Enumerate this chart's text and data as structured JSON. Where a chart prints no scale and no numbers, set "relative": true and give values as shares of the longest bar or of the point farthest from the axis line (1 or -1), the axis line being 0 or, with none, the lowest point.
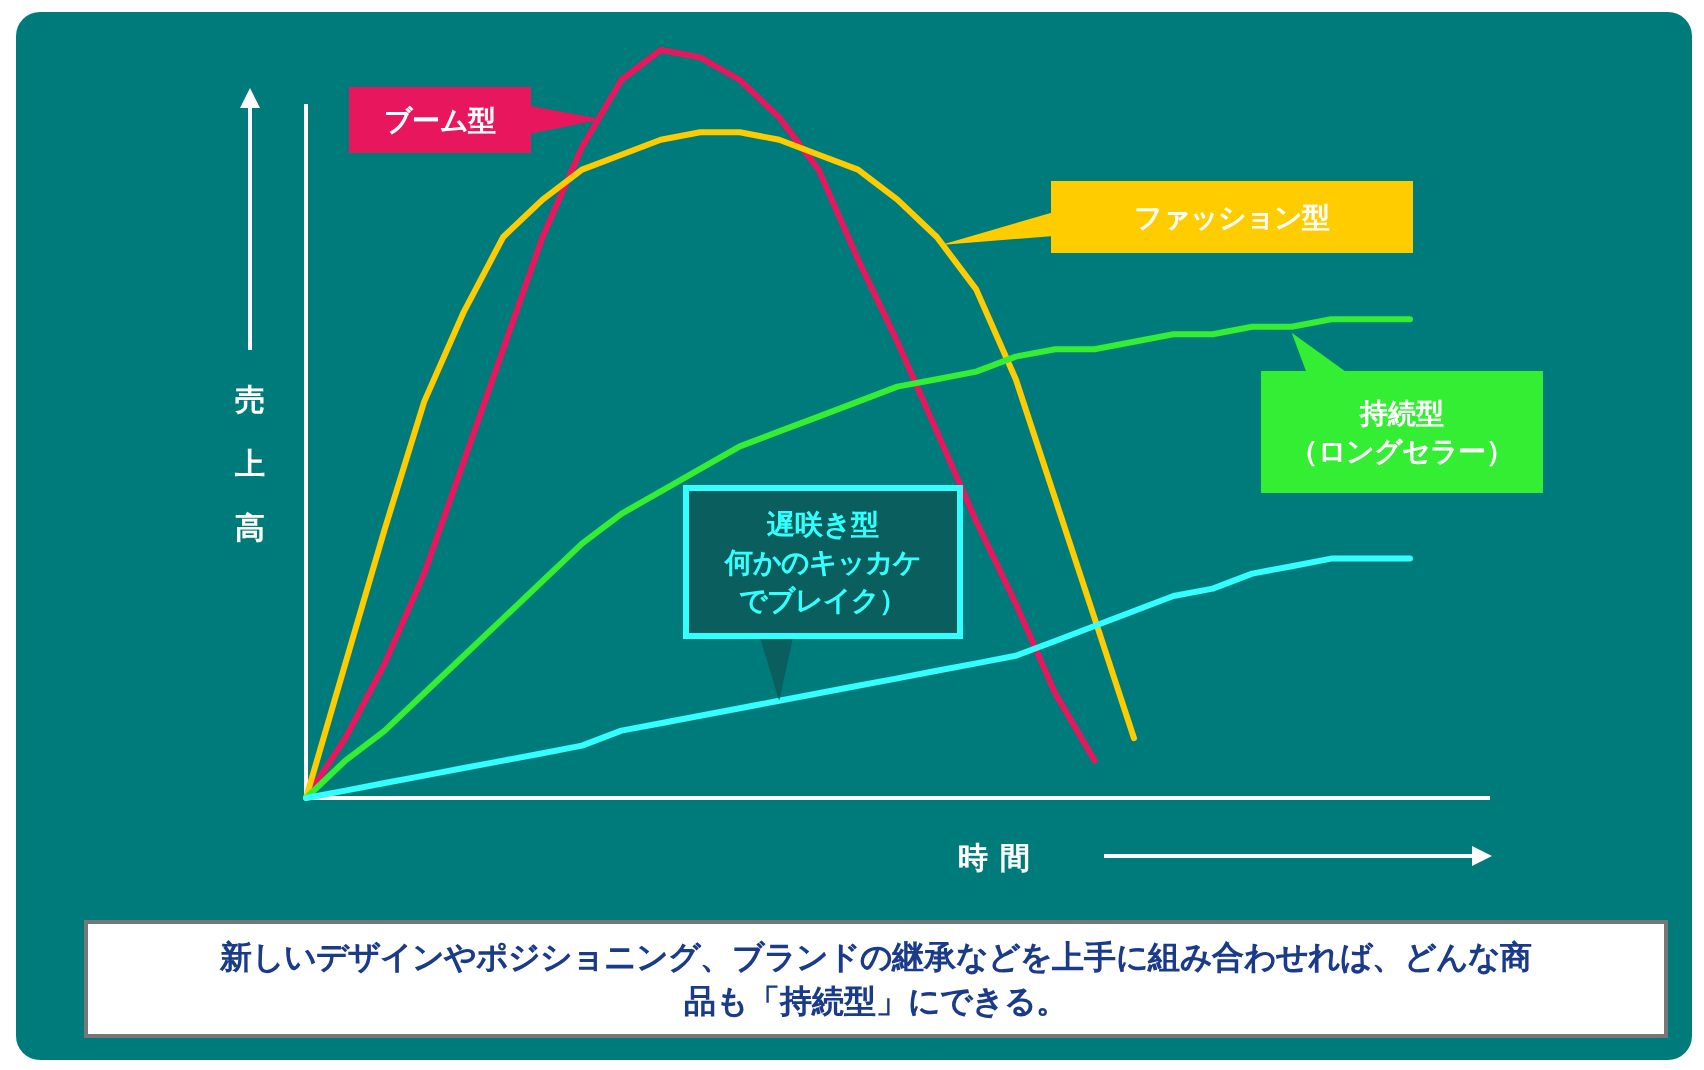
{
  "chart_data": {
    "type": "line",
    "relative": true,
    "xlabel": "時間",
    "ylabel": "売上高",
    "categories": [
      null,
      null,
      null,
      null,
      null,
      null,
      null,
      null,
      null,
      null,
      null,
      null,
      null,
      null,
      null,
      null,
      null,
      null,
      null,
      null,
      null,
      null,
      null,
      null,
      null,
      null,
      null,
      null,
      null
    ],
    "series": [
      {
        "name": "ブーム型",
        "color": "#e8175d",
        "values": [
          0,
          0.08,
          0.18,
          0.3,
          0.45,
          0.6,
          0.75,
          0.87,
          0.96,
          1.0,
          0.99,
          0.96,
          0.91,
          0.84,
          0.72,
          0.61,
          0.49,
          0.37,
          0.26,
          0.14,
          0.05,
          null,
          null,
          null,
          null,
          null,
          null,
          null,
          null
        ]
      },
      {
        "name": "ファッション型",
        "color": "#ffcc00",
        "values": [
          0,
          0.18,
          0.36,
          0.53,
          0.65,
          0.75,
          0.8,
          0.84,
          0.86,
          0.88,
          0.89,
          0.89,
          0.88,
          0.86,
          0.84,
          0.8,
          0.75,
          0.68,
          0.56,
          0.4,
          0.24,
          0.08,
          null,
          null,
          null,
          null,
          null,
          null,
          null
        ]
      },
      {
        "name": "持続型（ロングセラー）",
        "color": "#33ee33",
        "values": [
          0,
          0.05,
          0.09,
          0.14,
          0.19,
          0.24,
          0.29,
          0.34,
          0.38,
          0.41,
          0.44,
          0.47,
          0.49,
          0.51,
          0.53,
          0.55,
          0.56,
          0.57,
          0.59,
          0.6,
          0.6,
          0.61,
          0.62,
          0.62,
          0.63,
          0.63,
          0.64,
          0.64,
          0.64
        ]
      },
      {
        "name": "遅咲き型何かのキッカケでブレイク）",
        "color": "#33ffff",
        "values": [
          0,
          0.01,
          0.02,
          0.03,
          0.04,
          0.05,
          0.06,
          0.07,
          0.09,
          0.1,
          0.11,
          0.12,
          0.13,
          0.14,
          0.15,
          0.16,
          0.17,
          0.18,
          0.19,
          0.21,
          0.23,
          0.25,
          0.27,
          0.28,
          0.3,
          0.31,
          0.32,
          0.32,
          0.32
        ]
      }
    ],
    "annotations": [
      "新しいデザインやポジショニング、ブランドの継承などを上手に組み合わせれば、どんな商品も「持続型」にできる。"
    ]
  }
}
